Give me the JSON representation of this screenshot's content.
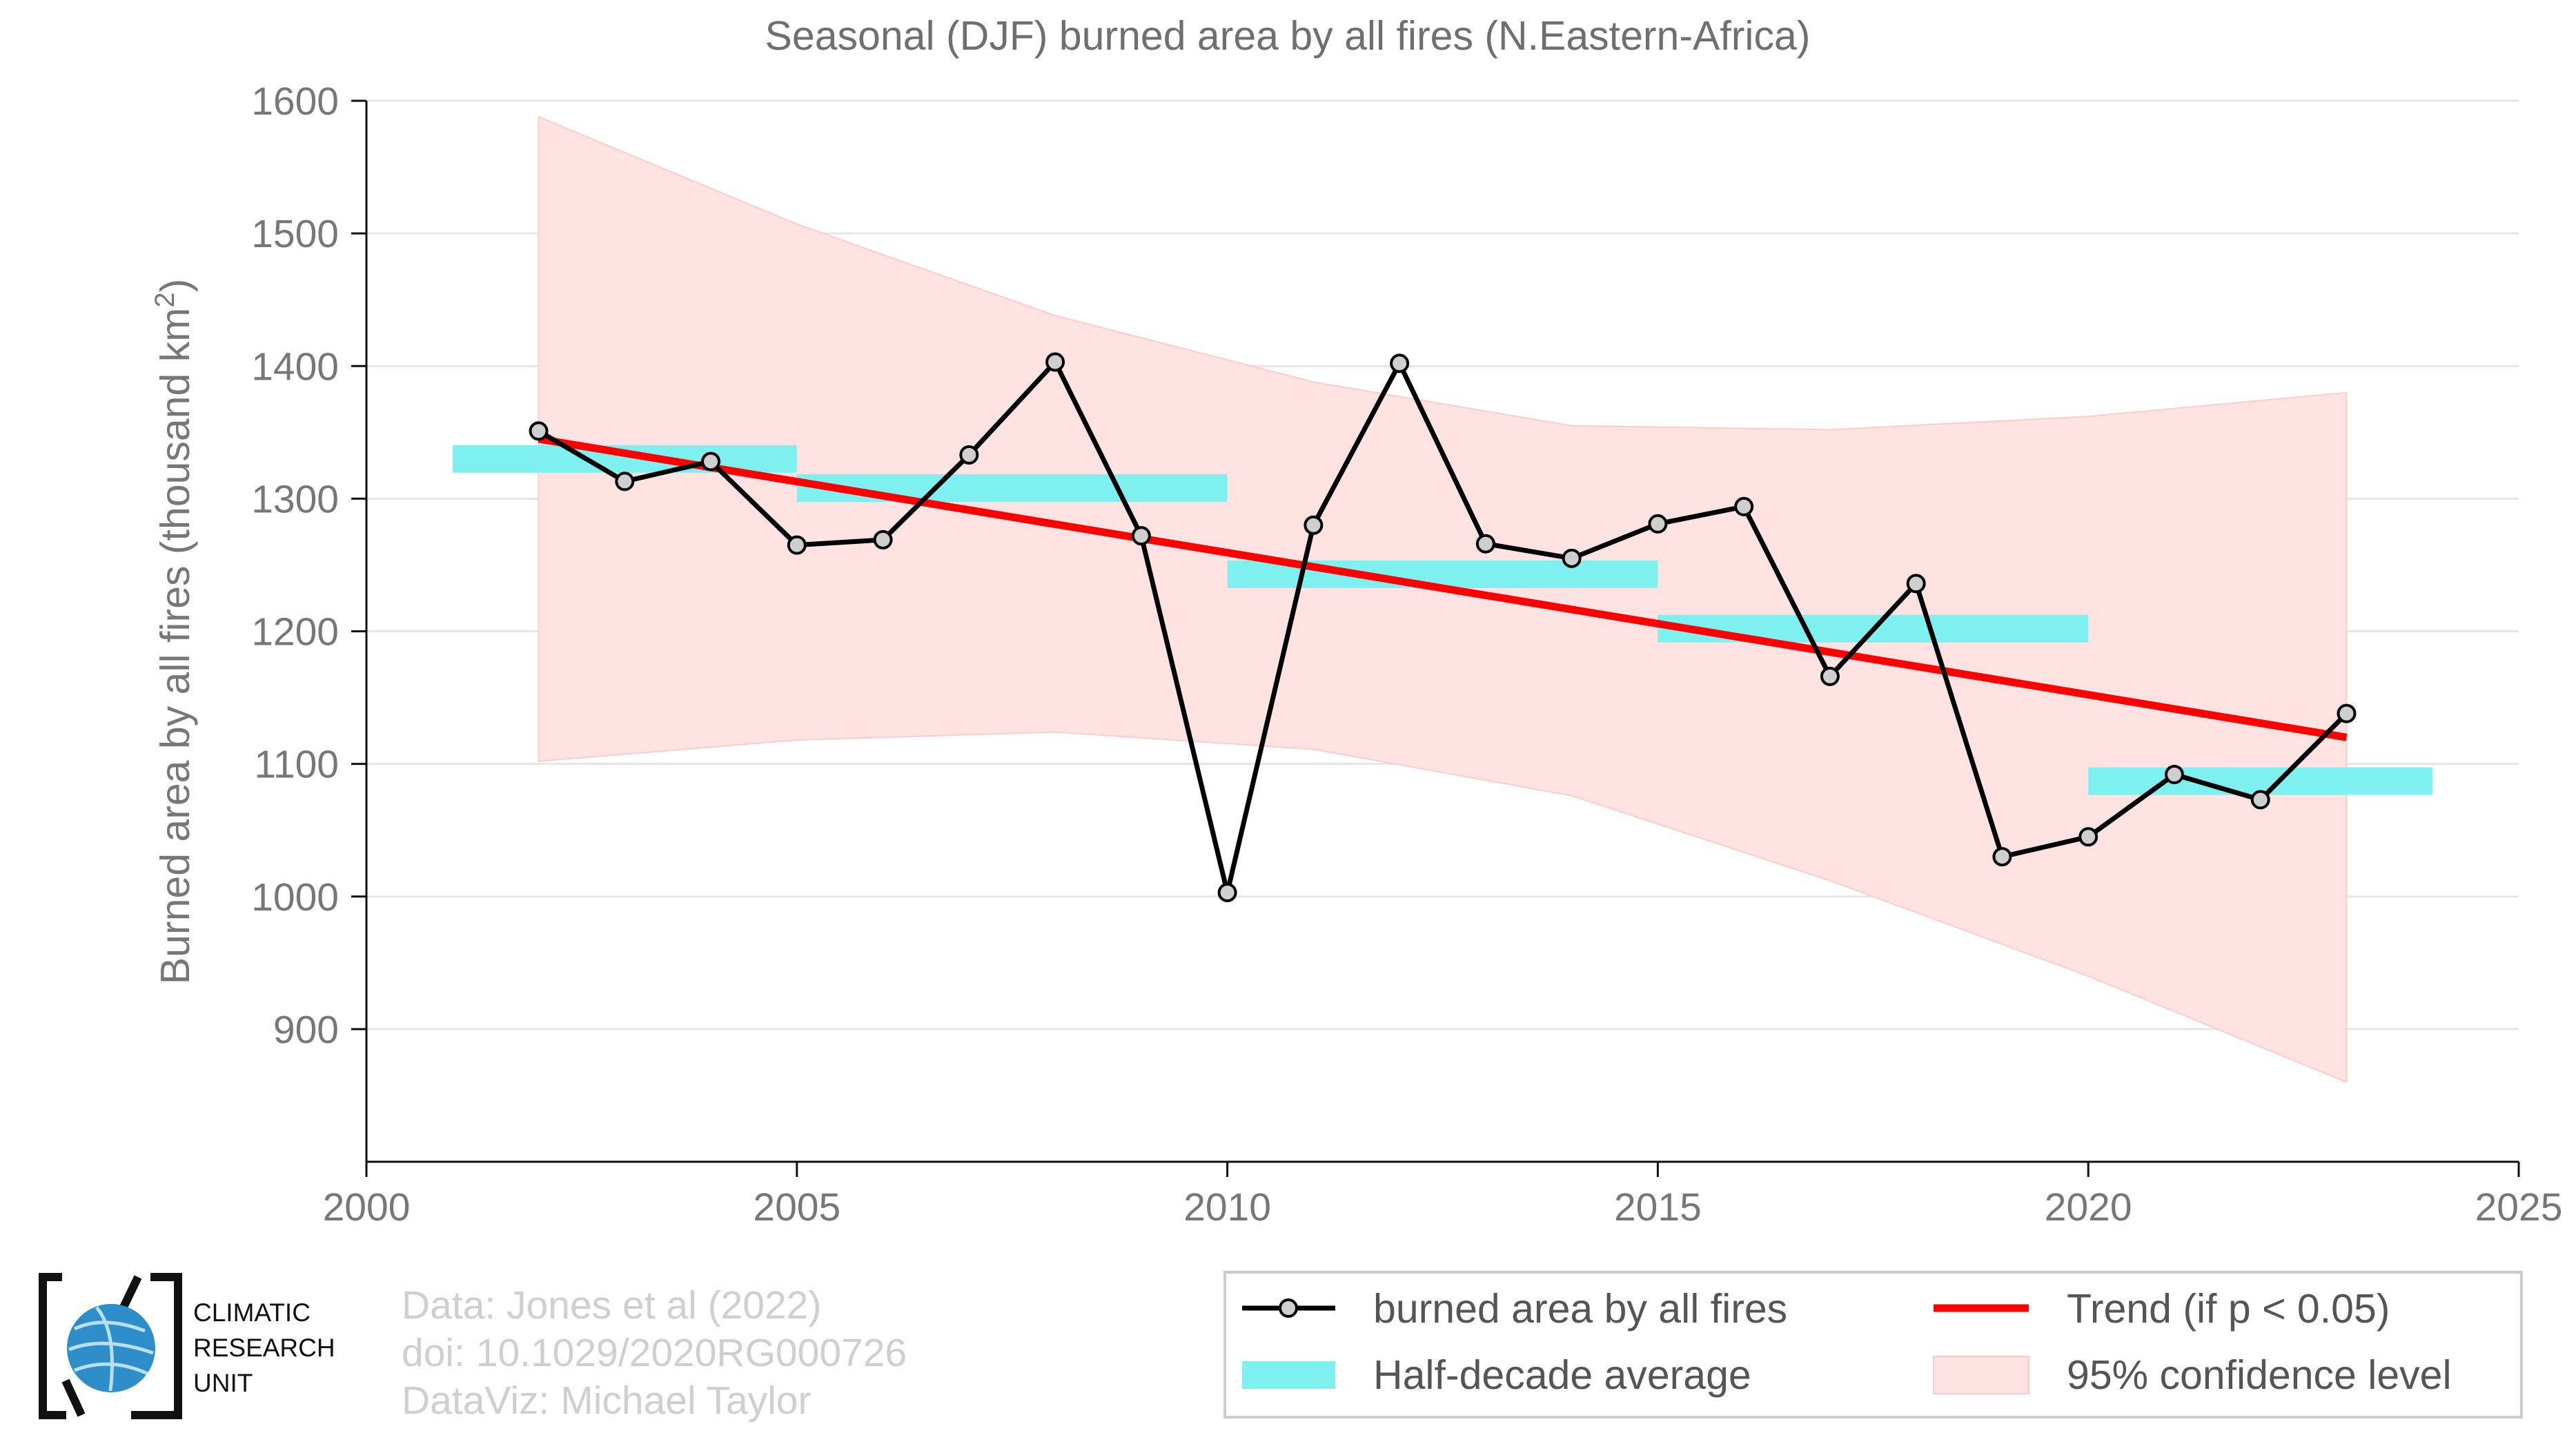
{
  "chart_data": {
    "type": "line",
    "title": "Seasonal (DJF) burned area by all fires (N.Eastern-Africa)",
    "ylabel": "Burned area by all fires (thousand km",
    "ylabel_sup": "2",
    "ylabel_end": ")",
    "xlim": [
      2000,
      2025
    ],
    "ylim": [
      800,
      1600
    ],
    "x_ticks": [
      2000,
      2005,
      2010,
      2015,
      2020,
      2025
    ],
    "y_ticks": [
      900,
      1000,
      1100,
      1200,
      1300,
      1400,
      1500,
      1600
    ],
    "grid": true,
    "legend_position": "bottom-right",
    "series": [
      {
        "name": "burned area by all fires",
        "color": "#000000",
        "x": [
          2002,
          2003,
          2004,
          2005,
          2006,
          2007,
          2008,
          2009,
          2010,
          2011,
          2012,
          2013,
          2014,
          2015,
          2016,
          2017,
          2018,
          2019,
          2020,
          2021,
          2022,
          2023
        ],
        "y": [
          1351,
          1313,
          1328,
          1265,
          1269,
          1333,
          1403,
          1272,
          1003,
          1280,
          1402,
          1266,
          1255,
          1281,
          1294,
          1166,
          1236,
          1030,
          1045,
          1092,
          1073,
          1138
        ]
      },
      {
        "name": "Trend (if p < 0.05)",
        "color": "#ff0000",
        "x": [
          2002,
          2023
        ],
        "y": [
          1345,
          1120
        ]
      },
      {
        "name": "Half-decade average",
        "color": "#7ff0f0",
        "segments": [
          {
            "x0": 2001,
            "x1": 2005,
            "y": 1330
          },
          {
            "x0": 2005,
            "x1": 2010,
            "y": 1308
          },
          {
            "x0": 2010,
            "x1": 2015,
            "y": 1243
          },
          {
            "x0": 2015,
            "x1": 2020,
            "y": 1202
          },
          {
            "x0": 2020,
            "x1": 2024,
            "y": 1087
          }
        ]
      },
      {
        "name": "95% confidence level",
        "color": "#ffe3e3",
        "x": [
          2002,
          2005,
          2008,
          2011,
          2014,
          2017,
          2020,
          2023
        ],
        "upper": [
          1588,
          1507,
          1438,
          1388,
          1355,
          1352,
          1362,
          1380
        ],
        "lower": [
          1102,
          1118,
          1124,
          1111,
          1076,
          1012,
          940,
          860
        ]
      }
    ]
  },
  "credits": {
    "line1": "Data: Jones et al (2022)",
    "line2": "doi: 10.1029/2020RG000726",
    "line3": "DataViz: Michael Taylor"
  },
  "logo": {
    "line1": "CLIMATIC",
    "line2": "RESEARCH",
    "line3": "UNIT"
  }
}
